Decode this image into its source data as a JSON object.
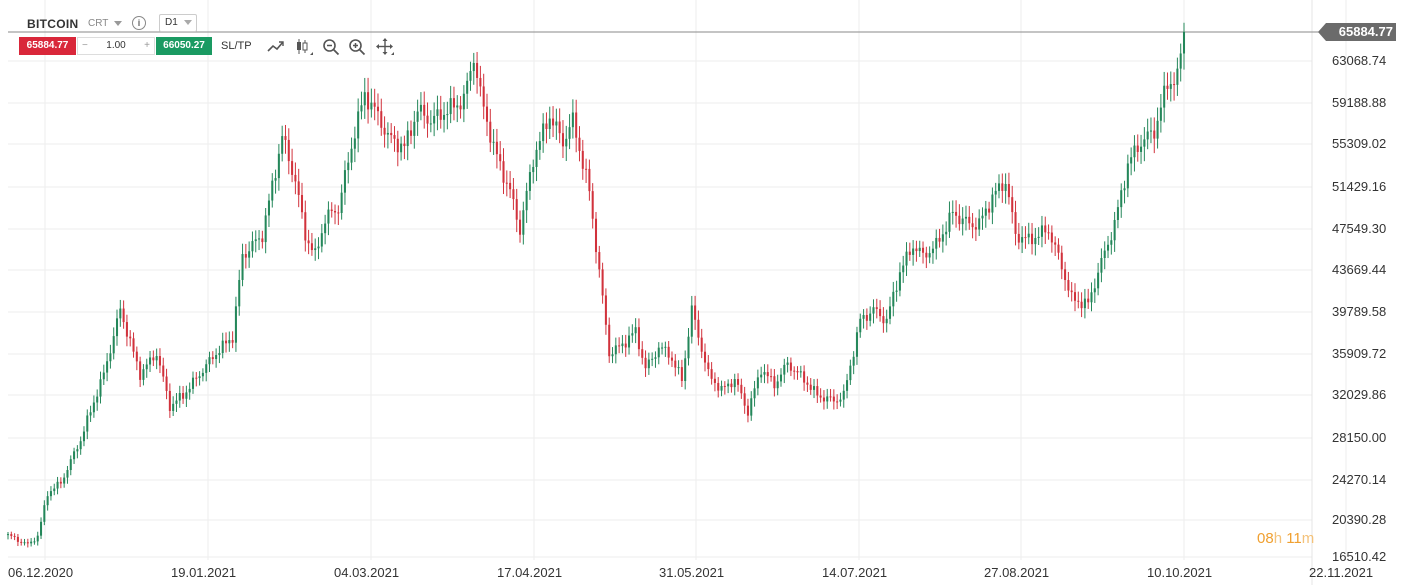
{
  "header": {
    "symbol": "BITCOIN",
    "instrument_type": "CRT",
    "info_icon_text": "i",
    "timeframe": "D1"
  },
  "trade": {
    "sell_price": "65884.77",
    "minus": "−",
    "volume": "1.00",
    "plus": "+",
    "buy_price": "66050.27",
    "sltp_label": "SL/TP"
  },
  "tools": [
    "line-chart-icon",
    "candlestick-icon",
    "zoom-out-icon",
    "zoom-in-icon",
    "move-icon"
  ],
  "colors": {
    "bull": "#24875a",
    "bear": "#d1323c",
    "sell": "#d9273a",
    "buy": "#1a9a62",
    "price_tag": "#6b6b6b",
    "grid": "#eeeeee",
    "timer": "#f0a030"
  },
  "current_price_tag": "65884.77",
  "timer": {
    "hours": "08",
    "h": "h",
    "minutes": "11",
    "m": "m"
  },
  "chart_data": {
    "type": "candlestick",
    "y_ticks": [
      "65884.77",
      "63068.74",
      "59188.88",
      "55309.02",
      "51429.16",
      "47549.30",
      "43669.44",
      "39789.58",
      "35909.72",
      "32029.86",
      "28150.00",
      "24270.14",
      "20390.28",
      "16510.42"
    ],
    "x_ticks": [
      "06.12.2020",
      "19.01.2021",
      "04.03.2021",
      "17.04.2021",
      "31.05.2021",
      "14.07.2021",
      "27.08.2021",
      "10.10.2021",
      "22.11.2021"
    ],
    "ylim": [
      16510.42,
      67000
    ],
    "keypoints": [
      [
        0,
        18800
      ],
      [
        6,
        17800
      ],
      [
        9,
        18700
      ],
      [
        12,
        23000
      ],
      [
        16,
        24000
      ],
      [
        22,
        28000
      ],
      [
        29,
        34000
      ],
      [
        34,
        40000
      ],
      [
        40,
        34000
      ],
      [
        45,
        36000
      ],
      [
        49,
        31000
      ],
      [
        53,
        32000
      ],
      [
        58,
        34000
      ],
      [
        63,
        36000
      ],
      [
        68,
        37500
      ],
      [
        71,
        45000
      ],
      [
        77,
        47000
      ],
      [
        83,
        56000
      ],
      [
        87,
        52000
      ],
      [
        90,
        47000
      ],
      [
        93,
        45000
      ],
      [
        96,
        48500
      ],
      [
        100,
        49500
      ],
      [
        105,
        56500
      ],
      [
        108,
        60000
      ],
      [
        112,
        58000
      ],
      [
        115,
        56000
      ],
      [
        120,
        55000
      ],
      [
        124,
        58500
      ],
      [
        128,
        57500
      ],
      [
        133,
        58500
      ],
      [
        138,
        59500
      ],
      [
        141,
        63500
      ],
      [
        143,
        60000
      ],
      [
        147,
        55000
      ],
      [
        152,
        51000
      ],
      [
        155,
        47500
      ],
      [
        159,
        54000
      ],
      [
        164,
        58000
      ],
      [
        168,
        55500
      ],
      [
        171,
        57500
      ],
      [
        176,
        51000
      ],
      [
        179,
        43500
      ],
      [
        182,
        36000
      ],
      [
        185,
        36500
      ],
      [
        190,
        38000
      ],
      [
        193,
        34500
      ],
      [
        197,
        36500
      ],
      [
        200,
        36000
      ],
      [
        204,
        33500
      ],
      [
        207,
        40000
      ],
      [
        212,
        34000
      ],
      [
        216,
        32500
      ],
      [
        220,
        33500
      ],
      [
        224,
        30500
      ],
      [
        228,
        34500
      ],
      [
        232,
        33000
      ],
      [
        236,
        35000
      ],
      [
        241,
        33500
      ],
      [
        245,
        32000
      ],
      [
        250,
        31500
      ],
      [
        253,
        32000
      ],
      [
        258,
        39000
      ],
      [
        262,
        40000
      ],
      [
        266,
        39000
      ],
      [
        270,
        43500
      ],
      [
        274,
        46000
      ],
      [
        277,
        45000
      ],
      [
        281,
        46000
      ],
      [
        286,
        49000
      ],
      [
        291,
        48000
      ],
      [
        294,
        48000
      ],
      [
        298,
        50500
      ],
      [
        302,
        52000
      ],
      [
        305,
        47000
      ],
      [
        309,
        46500
      ],
      [
        315,
        47500
      ],
      [
        319,
        44000
      ],
      [
        322,
        41000
      ],
      [
        327,
        40500
      ],
      [
        330,
        43500
      ],
      [
        335,
        48000
      ],
      [
        339,
        53500
      ],
      [
        343,
        55500
      ],
      [
        347,
        56500
      ],
      [
        351,
        61000
      ],
      [
        354,
        61500
      ],
      [
        356,
        65884.77
      ]
    ]
  }
}
